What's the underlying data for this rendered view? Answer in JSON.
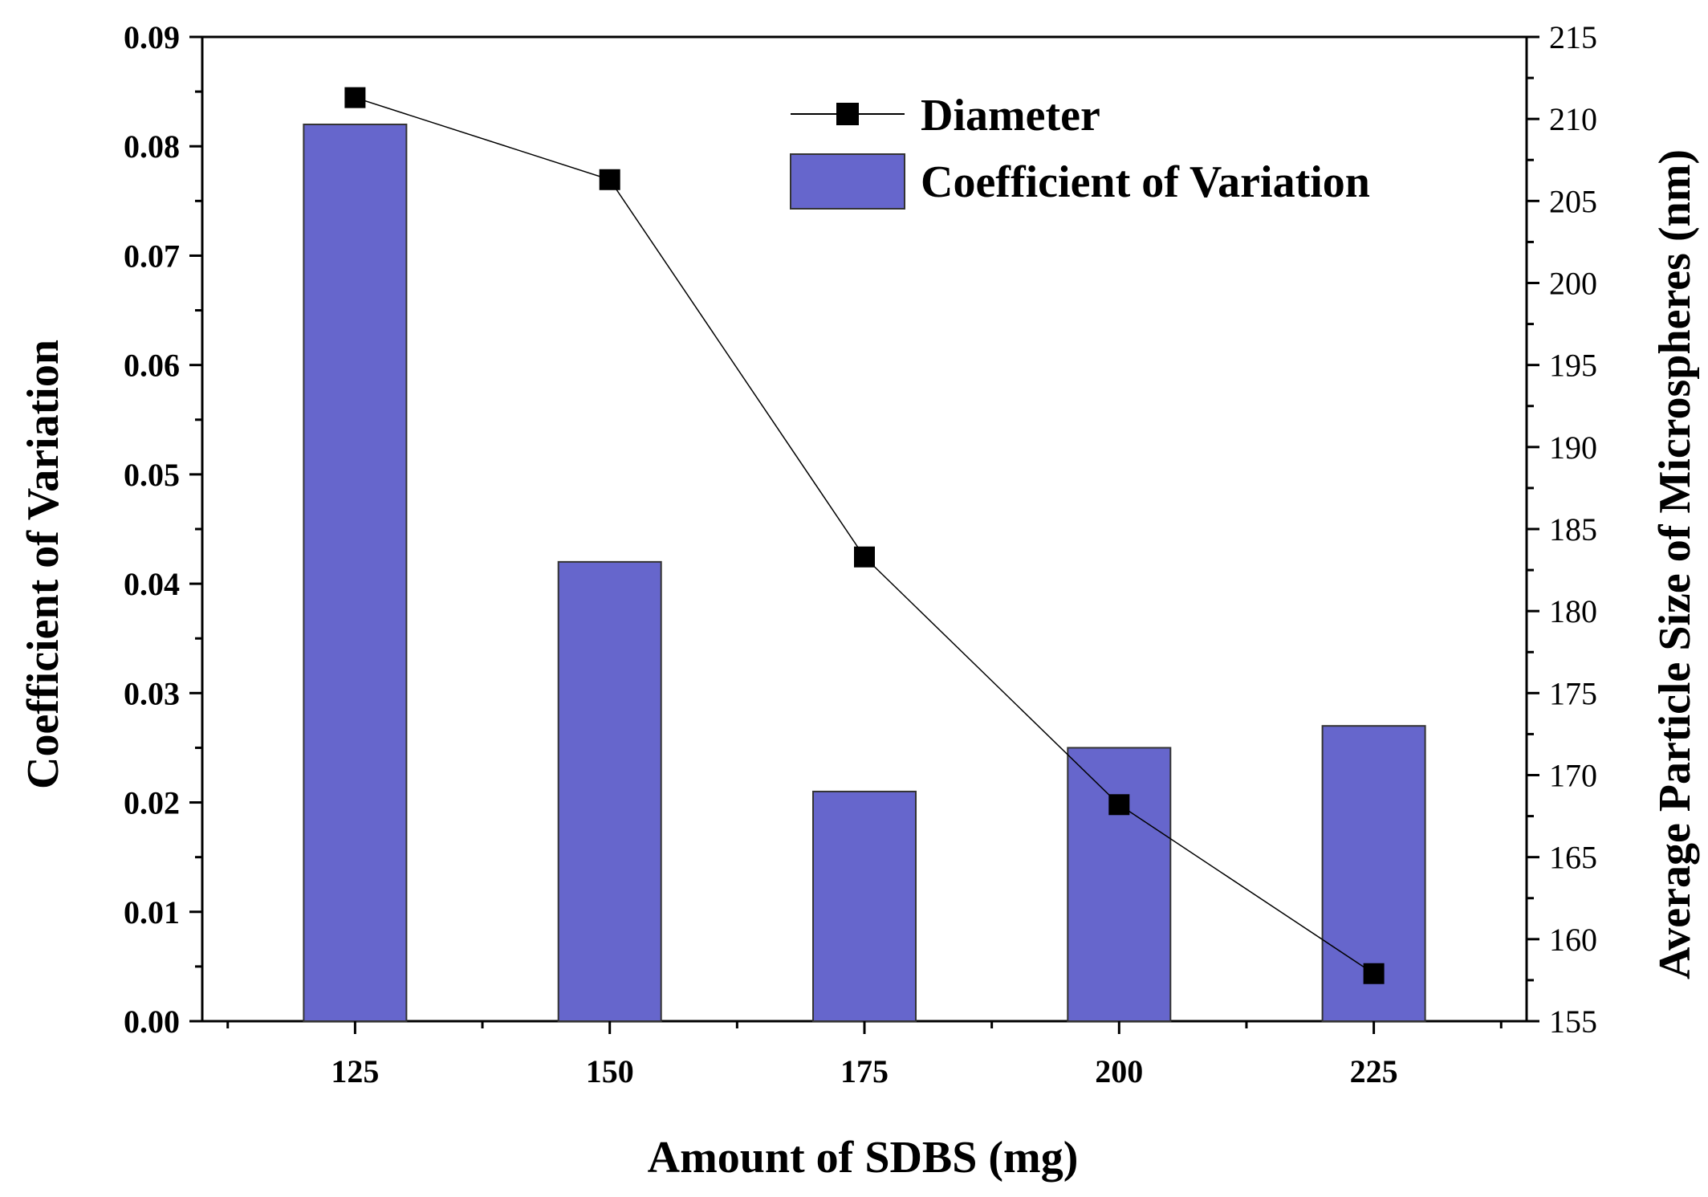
{
  "chart_data": {
    "type": "bar+line",
    "categories": [
      "125",
      "150",
      "175",
      "200",
      "225"
    ],
    "x_values": [
      125,
      150,
      175,
      200,
      225
    ],
    "xlabel": "Amount of SDBS (mg)",
    "xlim": [
      110,
      240
    ],
    "series": [
      {
        "name": "Coefficient of Variation",
        "type": "bar",
        "axis": "left",
        "values": [
          0.082,
          0.042,
          0.021,
          0.025,
          0.027
        ],
        "color": "#6666cc"
      },
      {
        "name": "Diameter",
        "type": "line",
        "axis": "right",
        "marker": "square",
        "values": [
          211.3,
          206.3,
          183.3,
          168.2,
          157.9
        ],
        "color": "#000000"
      }
    ],
    "ylabel": "Coefficient of Variation",
    "ylim": [
      0.0,
      0.09
    ],
    "yticks": [
      "0.00",
      "0.01",
      "0.02",
      "0.03",
      "0.04",
      "0.05",
      "0.06",
      "0.07",
      "0.08",
      "0.09"
    ],
    "y2label": "Average Particle Size of Microspheres (nm)",
    "y2lim": [
      155,
      215
    ],
    "y2ticks": [
      "155",
      "160",
      "165",
      "170",
      "175",
      "180",
      "185",
      "190",
      "195",
      "200",
      "205",
      "210",
      "215"
    ],
    "legend": {
      "position": "top-right",
      "entries": [
        "Diameter",
        "Coefficient of Variation"
      ]
    }
  }
}
